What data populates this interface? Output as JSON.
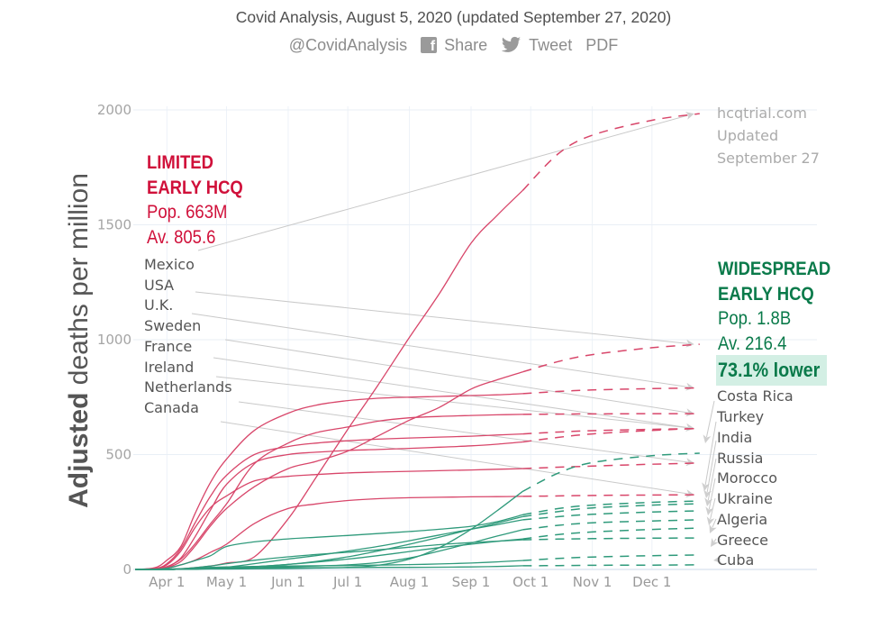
{
  "header": {
    "title": "Covid Analysis, August 5, 2020 (updated September 27, 2020)",
    "handle": "@CovidAnalysis",
    "share_icon": "facebook-icon",
    "share_label": "Share",
    "tweet_icon": "twitter-icon",
    "tweet_label": "Tweet",
    "pdf_label": "PDF"
  },
  "annotations": {
    "limited": {
      "title_lines": [
        "LIMITED",
        "EARLY HCQ"
      ],
      "pop": "Pop. 663M",
      "avg": "Av. 805.6"
    },
    "widespread": {
      "title_lines": [
        "WIDESPREAD",
        "EARLY HCQ"
      ],
      "pop": "Pop. 1.8B",
      "avg": "Av. 216.4",
      "comparison": "73.1% lower"
    },
    "source": {
      "lines": [
        "hcqtrial.com",
        "Updated",
        "September 27"
      ]
    }
  },
  "colors": {
    "limited_line": "#d8466a",
    "widespread_line": "#2f9a7b",
    "limited_label": "#d0103a",
    "widespread_label": "#0a7a4a",
    "highlight_bg": "#d3efe4",
    "leader_line": "#c9c9c9"
  },
  "chart_data": {
    "type": "line",
    "title": "",
    "xlabel": "",
    "ylabel": "Adjusted deaths per million",
    "ylabel_bold": "Adjusted",
    "ylabel_rest": " deaths per million",
    "xlim": [
      "2020-03-16",
      "2021-02-22"
    ],
    "ylim": [
      0,
      2000
    ],
    "grid": true,
    "legend": "group annotations left (limited) and right (widespread)",
    "y_ticks": [
      0,
      500,
      1000,
      1500,
      2000
    ],
    "x_ticks": [
      {
        "date": "2020-04-01",
        "label": "Apr 1"
      },
      {
        "date": "2020-05-01",
        "label": "May 1"
      },
      {
        "date": "2020-06-01",
        "label": "Jun 1"
      },
      {
        "date": "2020-07-01",
        "label": "Jul 1"
      },
      {
        "date": "2020-08-01",
        "label": "Aug 1"
      },
      {
        "date": "2020-09-01",
        "label": "Sep 1"
      },
      {
        "date": "2020-10-01",
        "label": "Oct 1"
      },
      {
        "date": "2020-11-01",
        "label": "Nov 1"
      },
      {
        "date": "2020-12-01",
        "label": "Dec 1"
      }
    ],
    "actual_dates": [
      "2020-03-16",
      "2020-03-26",
      "2020-04-01",
      "2020-04-08",
      "2020-04-15",
      "2020-04-23",
      "2020-05-01",
      "2020-05-15",
      "2020-06-01",
      "2020-06-15",
      "2020-07-01",
      "2020-07-16",
      "2020-08-01",
      "2020-08-16",
      "2020-09-01",
      "2020-09-14",
      "2020-09-27"
    ],
    "projection_dates": [
      "2020-09-27",
      "2020-10-15",
      "2020-11-01",
      "2020-12-01",
      "2020-12-25"
    ],
    "series": [
      {
        "name": "Mexico",
        "group": "limited",
        "actual": [
          0,
          0,
          1,
          3,
          8,
          15,
          28,
          55,
          220,
          400,
          610,
          800,
          1010,
          1200,
          1420,
          1540,
          1650
        ],
        "projection": [
          1650,
          1810,
          1890,
          1955,
          1984
        ]
      },
      {
        "name": "USA",
        "group": "limited",
        "actual": [
          0,
          2,
          8,
          35,
          100,
          190,
          265,
          360,
          439,
          470,
          515,
          580,
          650,
          705,
          785,
          825,
          860
        ],
        "projection": [
          860,
          905,
          935,
          965,
          980
        ]
      },
      {
        "name": "U.K.",
        "group": "limited",
        "actual": [
          0,
          8,
          40,
          100,
          240,
          380,
          480,
          605,
          680,
          715,
          735,
          745,
          750,
          753,
          757,
          760,
          765
        ],
        "projection": [
          765,
          775,
          781,
          787,
          790
        ]
      },
      {
        "name": "Sweden",
        "group": "limited",
        "actual": [
          0,
          2,
          12,
          45,
          110,
          200,
          285,
          460,
          550,
          595,
          620,
          645,
          660,
          666,
          670,
          673,
          675
        ],
        "projection": [
          675,
          676,
          677,
          678,
          678
        ]
      },
      {
        "name": "France",
        "group": "limited",
        "actual": [
          0,
          4,
          25,
          90,
          200,
          320,
          410,
          500,
          535,
          550,
          560,
          567,
          572,
          576,
          580,
          585,
          590
        ],
        "projection": [
          590,
          598,
          604,
          610,
          613
        ]
      },
      {
        "name": "Ireland",
        "group": "limited",
        "actual": [
          0,
          1,
          10,
          50,
          140,
          260,
          370,
          465,
          500,
          510,
          518,
          522,
          527,
          532,
          538,
          545,
          555
        ],
        "projection": [
          555,
          575,
          590,
          605,
          614
        ]
      },
      {
        "name": "Netherlands",
        "group": "limited",
        "actual": [
          0,
          3,
          20,
          80,
          180,
          270,
          320,
          385,
          405,
          413,
          420,
          424,
          427,
          430,
          433,
          436,
          439
        ],
        "projection": [
          439,
          445,
          450,
          458,
          463
        ]
      },
      {
        "name": "Canada",
        "group": "limited",
        "actual": [
          0,
          1,
          5,
          20,
          40,
          75,
          110,
          200,
          265,
          285,
          300,
          308,
          312,
          314,
          316,
          317,
          318
        ],
        "projection": [
          318,
          320,
          322,
          324,
          325
        ]
      },
      {
        "name": "Costa Rica",
        "group": "widespread",
        "actual": [
          0,
          0,
          0,
          1,
          1,
          2,
          2,
          3,
          4,
          6,
          9,
          18,
          45,
          95,
          175,
          255,
          340
        ],
        "projection": [
          340,
          420,
          465,
          495,
          506
        ]
      },
      {
        "name": "Turkey",
        "group": "widespread",
        "actual": [
          0,
          1,
          5,
          20,
          38,
          60,
          100,
          120,
          133,
          140,
          148,
          156,
          165,
          175,
          188,
          208,
          238
        ],
        "projection": [
          238,
          265,
          280,
          292,
          298
        ]
      },
      {
        "name": "India",
        "group": "widespread",
        "actual": [
          0,
          0,
          0,
          1,
          2,
          4,
          6,
          12,
          22,
          35,
          55,
          80,
          110,
          140,
          175,
          202,
          230
        ],
        "projection": [
          230,
          252,
          268,
          280,
          286
        ]
      },
      {
        "name": "Russia",
        "group": "widespread",
        "actual": [
          0,
          0,
          0,
          1,
          2,
          5,
          10,
          25,
          45,
          60,
          80,
          100,
          125,
          150,
          175,
          195,
          216
        ],
        "projection": [
          216,
          230,
          240,
          250,
          255
        ]
      },
      {
        "name": "Morocco",
        "group": "widespread",
        "actual": [
          0,
          0,
          0,
          1,
          2,
          3,
          5,
          8,
          12,
          15,
          20,
          30,
          50,
          80,
          115,
          145,
          173
        ],
        "projection": [
          173,
          192,
          203,
          211,
          216
        ]
      },
      {
        "name": "Ukraine",
        "group": "widespread",
        "actual": [
          0,
          0,
          0,
          1,
          2,
          4,
          6,
          12,
          22,
          32,
          45,
          60,
          78,
          95,
          110,
          122,
          133
        ],
        "projection": [
          133,
          152,
          163,
          174,
          180
        ]
      },
      {
        "name": "Algeria",
        "group": "widespread",
        "actual": [
          0,
          0,
          1,
          3,
          8,
          15,
          25,
          40,
          55,
          65,
          75,
          85,
          97,
          108,
          117,
          123,
          129
        ],
        "projection": [
          129,
          132,
          134,
          136,
          137
        ]
      },
      {
        "name": "Greece",
        "group": "widespread",
        "actual": [
          0,
          0,
          1,
          3,
          6,
          9,
          11,
          13,
          15,
          16,
          17,
          19,
          21,
          24,
          28,
          33,
          39
        ],
        "projection": [
          39,
          48,
          54,
          60,
          63
        ]
      },
      {
        "name": "Cuba",
        "group": "widespread",
        "actual": [
          0,
          0,
          0,
          1,
          2,
          4,
          6,
          7,
          8,
          8,
          8,
          9,
          9,
          10,
          11,
          13,
          16
        ],
        "projection": [
          16,
          17,
          18,
          19,
          20
        ]
      }
    ]
  }
}
